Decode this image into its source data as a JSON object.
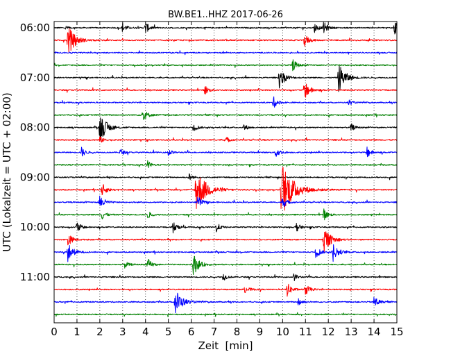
{
  "chart_data": {
    "type": "line",
    "title": "BW.BE1..HHZ 2017-06-26",
    "xlabel": "Zeit  [min]",
    "ylabel": "UTC (Lokalzeit = UTC + 02:00)",
    "xlim": [
      0,
      15
    ],
    "x_ticks": [
      0,
      1,
      2,
      3,
      4,
      5,
      6,
      7,
      8,
      9,
      10,
      11,
      12,
      13,
      14,
      15
    ],
    "y_tick_labels": [
      "06:00",
      "07:00",
      "08:00",
      "09:00",
      "10:00",
      "11:00"
    ],
    "grid": "vertical-dotted",
    "trace_colors": [
      "#000000",
      "#ff0000",
      "#0000ff",
      "#008000"
    ],
    "traces": [
      {
        "start": "06:00",
        "events": [
          [
            0.5,
            0.1
          ],
          [
            3.0,
            0.25
          ],
          [
            4.0,
            0.3
          ],
          [
            11.4,
            0.25
          ],
          [
            11.8,
            0.3
          ],
          [
            14.9,
            0.4
          ]
        ]
      },
      {
        "start": "06:15",
        "events": [
          [
            0.6,
            0.8
          ],
          [
            10.95,
            0.35
          ]
        ]
      },
      {
        "start": "06:30",
        "events": []
      },
      {
        "start": "06:45",
        "events": [
          [
            10.45,
            0.3
          ]
        ]
      },
      {
        "start": "07:00",
        "events": [
          [
            9.85,
            0.55
          ],
          [
            12.45,
            0.75
          ]
        ]
      },
      {
        "start": "07:15",
        "events": [
          [
            6.6,
            0.25
          ],
          [
            10.95,
            0.5
          ]
        ]
      },
      {
        "start": "07:30",
        "events": [
          [
            9.6,
            0.3
          ],
          [
            12.9,
            0.15
          ]
        ]
      },
      {
        "start": "07:45",
        "events": [
          [
            3.85,
            0.4
          ]
        ]
      },
      {
        "start": "08:00",
        "events": [
          [
            2.0,
            0.75
          ],
          [
            6.1,
            0.25
          ],
          [
            8.3,
            0.2
          ],
          [
            13.0,
            0.2
          ]
        ]
      },
      {
        "start": "08:15",
        "events": [
          [
            2.0,
            0.2
          ],
          [
            7.5,
            0.2
          ]
        ]
      },
      {
        "start": "08:30",
        "events": [
          [
            1.2,
            0.25
          ],
          [
            2.9,
            0.2
          ],
          [
            5.0,
            0.2
          ],
          [
            9.7,
            0.3
          ],
          [
            13.7,
            0.3
          ]
        ]
      },
      {
        "start": "08:45",
        "events": [
          [
            4.1,
            0.2
          ]
        ]
      },
      {
        "start": "09:00",
        "events": [
          [
            5.9,
            0.2
          ]
        ]
      },
      {
        "start": "09:15",
        "events": [
          [
            2.1,
            0.35
          ],
          [
            6.2,
            1.2
          ],
          [
            9.95,
            1.5
          ]
        ]
      },
      {
        "start": "09:30",
        "events": [
          [
            2.0,
            0.4
          ],
          [
            6.3,
            0.3
          ],
          [
            10.0,
            0.3
          ]
        ]
      },
      {
        "start": "09:45",
        "events": [
          [
            2.1,
            0.25
          ],
          [
            4.1,
            0.2
          ],
          [
            11.8,
            0.3
          ]
        ]
      },
      {
        "start": "10:00",
        "events": [
          [
            1.0,
            0.3
          ],
          [
            5.2,
            0.3
          ],
          [
            7.1,
            0.25
          ],
          [
            10.6,
            0.25
          ]
        ]
      },
      {
        "start": "10:15",
        "events": [
          [
            0.6,
            0.35
          ],
          [
            11.8,
            0.7
          ]
        ]
      },
      {
        "start": "10:30",
        "events": [
          [
            0.6,
            0.5
          ],
          [
            11.45,
            0.35
          ],
          [
            12.2,
            0.5
          ]
        ]
      },
      {
        "start": "10:45",
        "events": [
          [
            3.1,
            0.2
          ],
          [
            4.1,
            0.3
          ],
          [
            6.1,
            0.55
          ]
        ]
      },
      {
        "start": "11:00",
        "events": [
          [
            7.4,
            0.2
          ],
          [
            10.5,
            0.2
          ]
        ]
      },
      {
        "start": "11:15",
        "events": [
          [
            8.3,
            0.3
          ],
          [
            10.2,
            0.35
          ],
          [
            11.0,
            0.3
          ]
        ]
      },
      {
        "start": "11:30",
        "events": [
          [
            5.3,
            0.7
          ],
          [
            10.7,
            0.25
          ],
          [
            14.0,
            0.35
          ]
        ]
      },
      {
        "start": "11:45",
        "events": []
      }
    ]
  }
}
